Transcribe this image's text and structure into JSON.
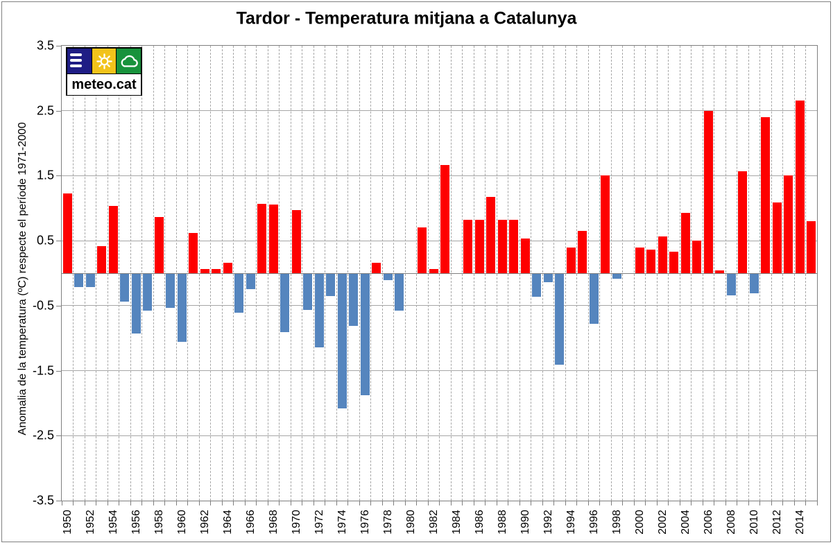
{
  "page": {
    "background": "#FFFFFF",
    "frame_color": "#7F7F7F"
  },
  "logo": {
    "text": "meteo.cat",
    "square_colors": {
      "navy": "#1F1D85",
      "yellow": "#F2C31B",
      "green": "#18923C"
    },
    "icons": [
      "menu-icon",
      "sun-icon",
      "cloud-icon"
    ]
  },
  "chart_data": {
    "type": "bar",
    "title": "Tardor - Temperatura mitjana a Catalunya",
    "ylabel": "Anomalia de la temperatura (ºC) respecte el període 1971-2000",
    "xlabel": "",
    "ylim": [
      -3.5,
      3.5
    ],
    "yticks": [
      "3.5",
      "2.5",
      "1.5",
      "0.5",
      "-0.5",
      "-1.5",
      "-2.5",
      "-3.5"
    ],
    "xtick_labels": [
      "1950",
      "1952",
      "1954",
      "1956",
      "1958",
      "1960",
      "1962",
      "1964",
      "1966",
      "1968",
      "1970",
      "1972",
      "1974",
      "1976",
      "1978",
      "1980",
      "1982",
      "1984",
      "1986",
      "1988",
      "1990",
      "1992",
      "1994",
      "1996",
      "1998",
      "2000",
      "2002",
      "2004",
      "2006",
      "2008",
      "2010",
      "2012",
      "2014"
    ],
    "grid": {
      "horizontal": "solid",
      "vertical": "dashed",
      "color": "#A6A6A6",
      "zero_line_color": "#7F7F7F"
    },
    "bar_colors": {
      "positive": "#FE0000",
      "negative": "#5585BE"
    },
    "legend": "none",
    "categories": [
      1950,
      1951,
      1952,
      1953,
      1954,
      1955,
      1956,
      1957,
      1958,
      1959,
      1960,
      1961,
      1962,
      1963,
      1964,
      1965,
      1966,
      1967,
      1968,
      1969,
      1970,
      1971,
      1972,
      1973,
      1974,
      1975,
      1976,
      1977,
      1978,
      1979,
      1980,
      1981,
      1982,
      1983,
      1984,
      1985,
      1986,
      1987,
      1988,
      1989,
      1990,
      1991,
      1992,
      1993,
      1994,
      1995,
      1996,
      1997,
      1998,
      1999,
      2000,
      2001,
      2002,
      2003,
      2004,
      2005,
      2006,
      2007,
      2008,
      2009,
      2010,
      2011,
      2012,
      2013,
      2014,
      2015
    ],
    "values": [
      1.23,
      -0.2,
      -0.2,
      0.42,
      1.03,
      -0.43,
      -0.92,
      -0.57,
      0.86,
      -0.52,
      -1.05,
      0.62,
      0.06,
      0.06,
      0.16,
      -0.6,
      -0.23,
      1.07,
      1.06,
      -0.9,
      0.97,
      -0.55,
      -1.13,
      -0.34,
      -2.07,
      -0.8,
      -1.87,
      0.16,
      -0.1,
      -0.57,
      0.0,
      0.7,
      0.06,
      1.66,
      0.0,
      0.82,
      0.82,
      1.17,
      0.82,
      0.82,
      0.53,
      -0.35,
      -0.13,
      -1.4,
      0.4,
      0.65,
      -0.77,
      1.5,
      -0.07,
      0.0,
      0.39,
      0.36,
      0.57,
      0.33,
      0.93,
      0.5,
      2.5,
      0.04,
      -0.33,
      1.57,
      -0.3,
      2.4,
      1.09,
      1.5,
      2.66,
      0.8
    ]
  }
}
